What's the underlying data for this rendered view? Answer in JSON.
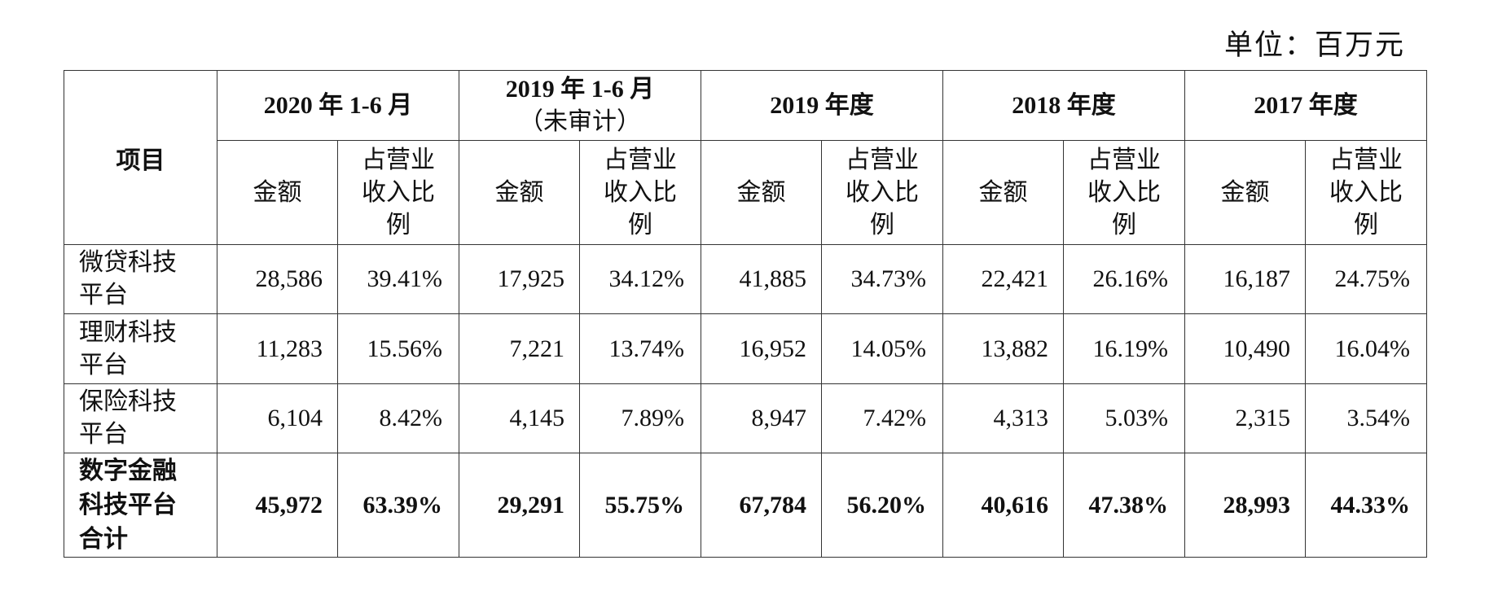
{
  "unit_label": "单位：百万元",
  "table": {
    "item_header": "项目",
    "periods": [
      {
        "title": "2020 年 1-6 月",
        "subtitle": ""
      },
      {
        "title": "2019 年 1-6 月",
        "subtitle": "（未审计）"
      },
      {
        "title": "2019 年度",
        "subtitle": ""
      },
      {
        "title": "2018 年度",
        "subtitle": ""
      },
      {
        "title": "2017 年度",
        "subtitle": ""
      }
    ],
    "sub_headers": {
      "amount": "金额",
      "ratio_line1": "占营业",
      "ratio_line2": "收入比",
      "ratio_line3": "例"
    },
    "rows": [
      {
        "label_line1": "微贷科技",
        "label_line2": "平台",
        "label_line3": "",
        "values": [
          "28,586",
          "39.41%",
          "17,925",
          "34.12%",
          "41,885",
          "34.73%",
          "22,421",
          "26.16%",
          "16,187",
          "24.75%"
        ]
      },
      {
        "label_line1": "理财科技",
        "label_line2": "平台",
        "label_line3": "",
        "values": [
          "11,283",
          "15.56%",
          "7,221",
          "13.74%",
          "16,952",
          "14.05%",
          "13,882",
          "16.19%",
          "10,490",
          "16.04%"
        ]
      },
      {
        "label_line1": "保险科技",
        "label_line2": "平台",
        "label_line3": "",
        "values": [
          "6,104",
          "8.42%",
          "4,145",
          "7.89%",
          "8,947",
          "7.42%",
          "4,313",
          "5.03%",
          "2,315",
          "3.54%"
        ]
      },
      {
        "label_line1": "数字金融",
        "label_line2": "科技平台",
        "label_line3": "合计",
        "values": [
          "45,972",
          "63.39%",
          "29,291",
          "55.75%",
          "67,784",
          "56.20%",
          "40,616",
          "47.38%",
          "28,993",
          "44.33%"
        ]
      }
    ]
  }
}
